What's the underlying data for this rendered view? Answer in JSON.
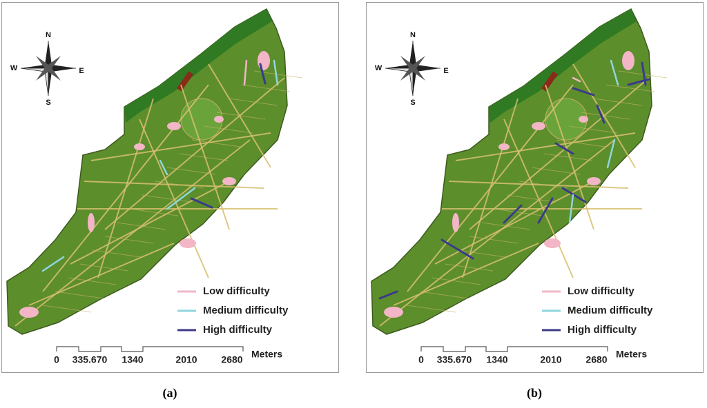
{
  "panels": [
    {
      "caption": "(a)",
      "compass": {
        "north": "N",
        "south": "S",
        "west": "W",
        "east": "E"
      },
      "legend": [
        {
          "label": "Low difficulty",
          "color": "#f2b6c6"
        },
        {
          "label": "Medium difficulty",
          "color": "#8fd6de"
        },
        {
          "label": "High difficulty",
          "color": "#3b3a8a"
        }
      ],
      "scale": {
        "labels": [
          "0",
          "335.670",
          "1340",
          "2010",
          "2680"
        ],
        "unit": "Meters"
      }
    },
    {
      "caption": "(b)",
      "compass": {
        "north": "N",
        "south": "S",
        "west": "W",
        "east": "E"
      },
      "legend": [
        {
          "label": "Low difficulty",
          "color": "#f2b6c6"
        },
        {
          "label": "Medium difficulty",
          "color": "#8fd6de"
        },
        {
          "label": "High difficulty",
          "color": "#3b3a8a"
        }
      ],
      "scale": {
        "labels": [
          "0",
          "335.670",
          "1340",
          "2010",
          "2680"
        ],
        "unit": "Meters"
      }
    }
  ]
}
